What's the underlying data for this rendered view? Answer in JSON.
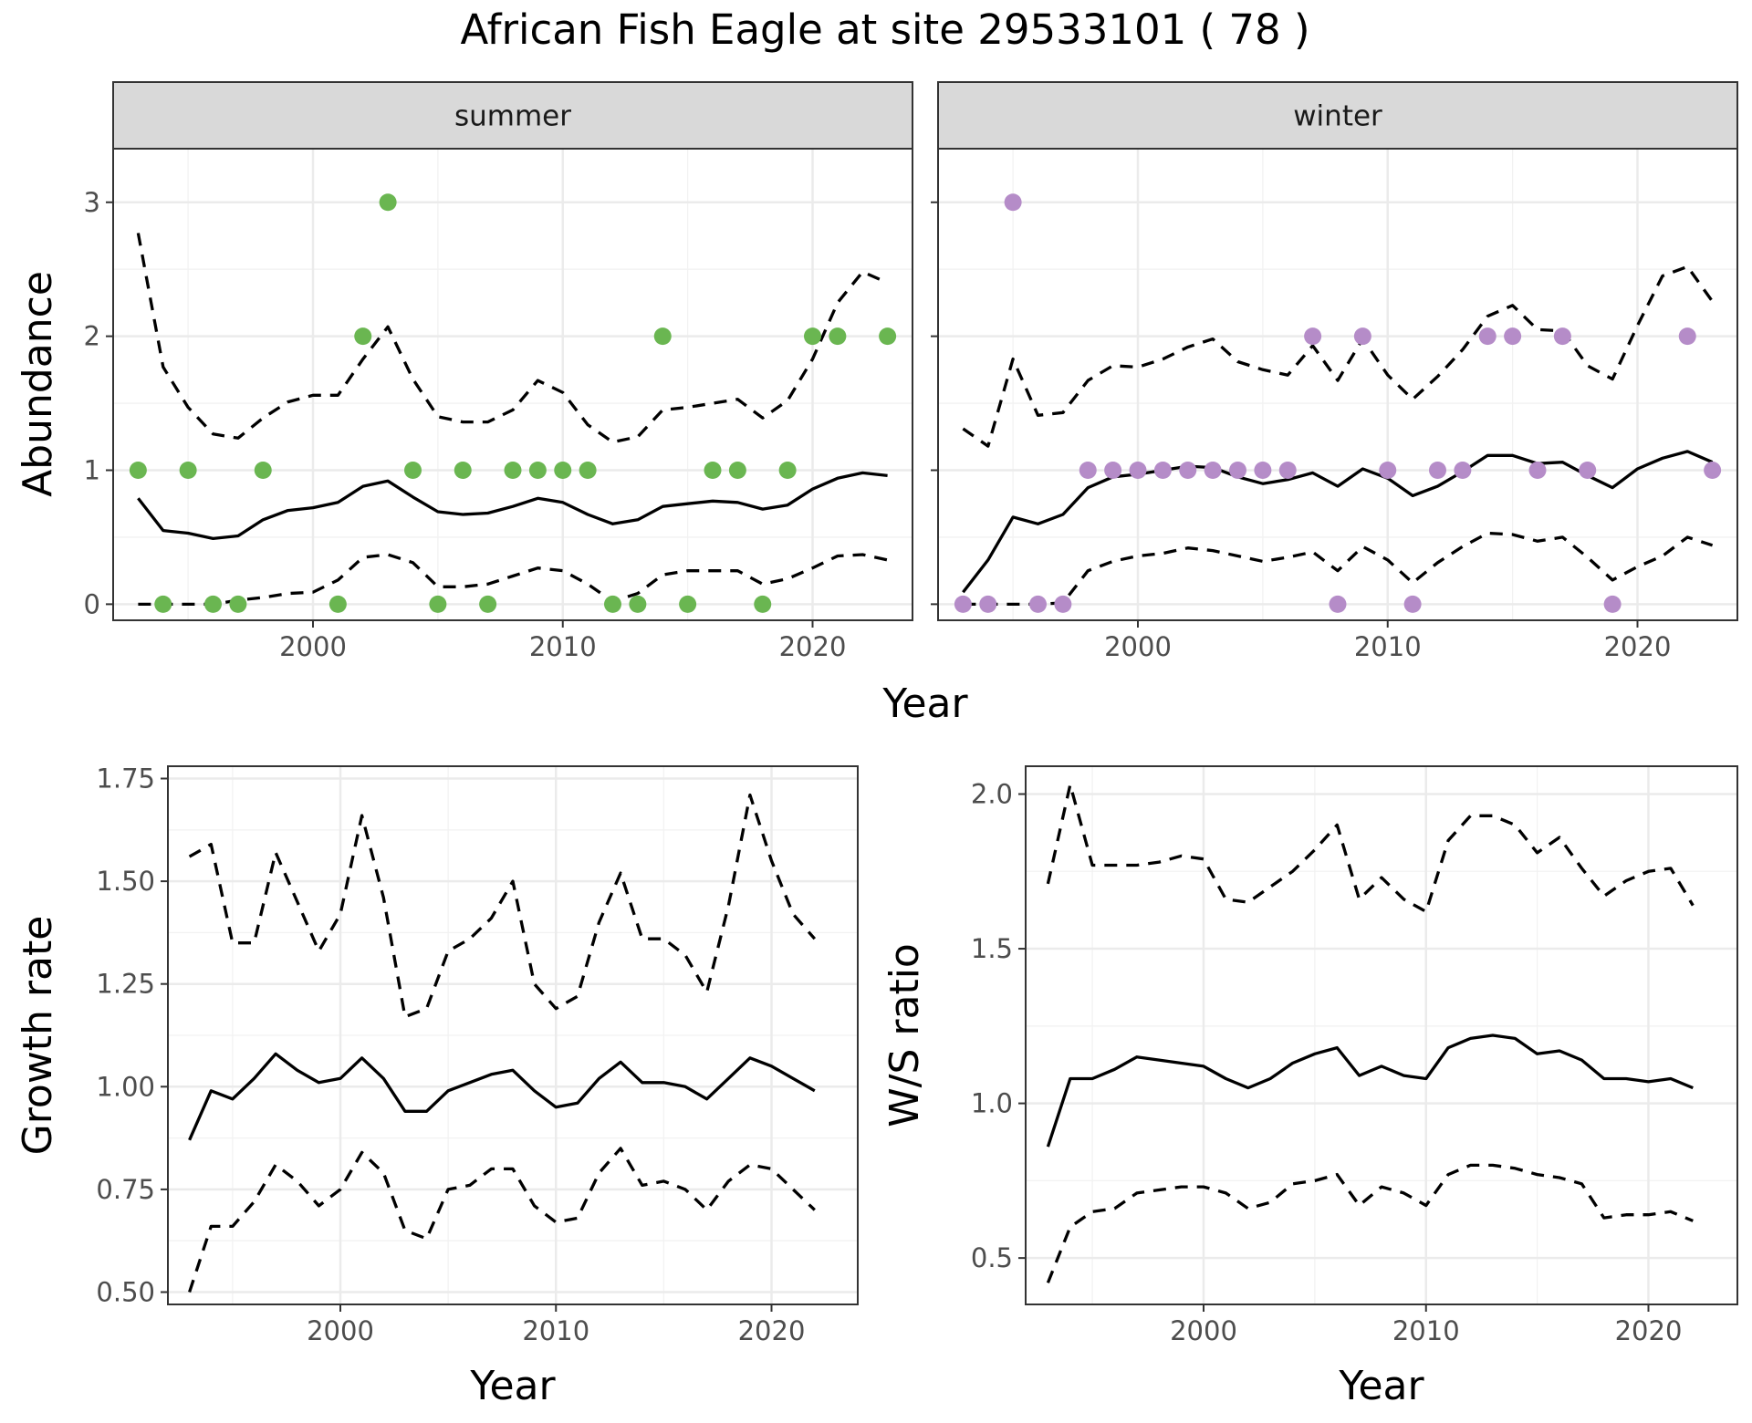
{
  "title": "African Fish Eagle at site 29533101 ( 78 )",
  "colors": {
    "summer_points": "#6ab651",
    "winter_points": "#b58cc8",
    "lines": "#000000"
  },
  "chart_data": [
    {
      "id": "summer",
      "type": "scatter",
      "facet_label": "summer",
      "xlabel": "Year",
      "ylabel": "Abundance",
      "xlim": [
        1992,
        2024
      ],
      "ylim": [
        -0.12,
        3.4
      ],
      "xticks": [
        2000,
        2010,
        2020
      ],
      "yticks": [
        0,
        1,
        2,
        3
      ],
      "grid": true,
      "points": {
        "x": [
          1993,
          1994,
          1995,
          1996,
          1997,
          1998,
          2001,
          2002,
          2003,
          2004,
          2005,
          2006,
          2007,
          2008,
          2009,
          2010,
          2011,
          2012,
          2013,
          2014,
          2015,
          2016,
          2017,
          2018,
          2019,
          2020,
          2021,
          2023
        ],
        "y": [
          1,
          0,
          1,
          0,
          0,
          1,
          0,
          2,
          3,
          1,
          0,
          1,
          0,
          1,
          1,
          1,
          1,
          0,
          0,
          2,
          0,
          1,
          1,
          0,
          1,
          2,
          2,
          2
        ]
      },
      "lines": [
        {
          "style": "solid",
          "x": [
            1993,
            1994,
            1995,
            1996,
            1997,
            1998,
            1999,
            2000,
            2001,
            2002,
            2003,
            2004,
            2005,
            2006,
            2007,
            2008,
            2009,
            2010,
            2011,
            2012,
            2013,
            2014,
            2015,
            2016,
            2017,
            2018,
            2019,
            2020,
            2021,
            2022,
            2023
          ],
          "y": [
            0.79,
            0.55,
            0.53,
            0.49,
            0.51,
            0.63,
            0.7,
            0.72,
            0.76,
            0.88,
            0.92,
            0.8,
            0.69,
            0.67,
            0.68,
            0.73,
            0.79,
            0.76,
            0.67,
            0.6,
            0.63,
            0.73,
            0.75,
            0.77,
            0.76,
            0.71,
            0.74,
            0.86,
            0.94,
            0.98,
            0.96
          ]
        },
        {
          "style": "dashed",
          "x": [
            1993,
            1994,
            1995,
            1996,
            1997,
            1998,
            1999,
            2000,
            2001,
            2002,
            2003,
            2004,
            2005,
            2006,
            2007,
            2008,
            2009,
            2010,
            2011,
            2012,
            2013,
            2014,
            2015,
            2016,
            2017,
            2018,
            2019,
            2020,
            2021,
            2022,
            2023
          ],
          "y": [
            2.77,
            1.77,
            1.47,
            1.27,
            1.24,
            1.39,
            1.51,
            1.56,
            1.56,
            1.83,
            2.07,
            1.68,
            1.4,
            1.36,
            1.36,
            1.45,
            1.67,
            1.58,
            1.34,
            1.21,
            1.25,
            1.45,
            1.47,
            1.5,
            1.53,
            1.39,
            1.52,
            1.83,
            2.25,
            2.48,
            2.4
          ]
        },
        {
          "style": "dashed",
          "x": [
            1993,
            1994,
            1995,
            1996,
            1997,
            1998,
            1999,
            2000,
            2001,
            2002,
            2003,
            2004,
            2005,
            2006,
            2007,
            2008,
            2009,
            2010,
            2011,
            2012,
            2013,
            2014,
            2015,
            2016,
            2017,
            2018,
            2019,
            2020,
            2021,
            2022,
            2023
          ],
          "y": [
            0,
            0,
            0,
            0,
            0.03,
            0.05,
            0.08,
            0.09,
            0.18,
            0.35,
            0.37,
            0.31,
            0.13,
            0.13,
            0.15,
            0.21,
            0.27,
            0.25,
            0.15,
            0.02,
            0.08,
            0.22,
            0.25,
            0.25,
            0.25,
            0.15,
            0.19,
            0.27,
            0.36,
            0.37,
            0.33
          ]
        }
      ]
    },
    {
      "id": "winter",
      "type": "scatter",
      "facet_label": "winter",
      "xlabel": "Year",
      "ylabel": "Abundance",
      "xlim": [
        1992,
        2024
      ],
      "ylim": [
        -0.12,
        3.4
      ],
      "xticks": [
        2000,
        2010,
        2020
      ],
      "yticks": [
        0,
        1,
        2,
        3
      ],
      "grid": true,
      "points": {
        "x": [
          1993,
          1994,
          1995,
          1996,
          1997,
          1998,
          1999,
          2000,
          2001,
          2002,
          2003,
          2004,
          2005,
          2006,
          2007,
          2008,
          2009,
          2010,
          2011,
          2012,
          2013,
          2014,
          2015,
          2016,
          2017,
          2018,
          2019,
          2022,
          2023
        ],
        "y": [
          0,
          0,
          3,
          0,
          0,
          1,
          1,
          1,
          1,
          1,
          1,
          1,
          1,
          1,
          2,
          0,
          2,
          1,
          0,
          1,
          1,
          2,
          2,
          1,
          2,
          1,
          0,
          2,
          1
        ]
      },
      "lines": [
        {
          "style": "solid",
          "x": [
            1993,
            1994,
            1995,
            1996,
            1997,
            1998,
            1999,
            2000,
            2001,
            2002,
            2003,
            2004,
            2005,
            2006,
            2007,
            2008,
            2009,
            2010,
            2011,
            2012,
            2013,
            2014,
            2015,
            2016,
            2017,
            2018,
            2019,
            2020,
            2021,
            2022,
            2023
          ],
          "y": [
            0.09,
            0.33,
            0.65,
            0.6,
            0.67,
            0.87,
            0.95,
            0.97,
            1.0,
            1.03,
            1.02,
            0.95,
            0.9,
            0.93,
            0.98,
            0.88,
            1.01,
            0.94,
            0.81,
            0.88,
            0.99,
            1.11,
            1.11,
            1.05,
            1.06,
            0.96,
            0.87,
            1.01,
            1.09,
            1.14,
            1.06
          ]
        },
        {
          "style": "dashed",
          "x": [
            1993,
            1994,
            1995,
            1996,
            1997,
            1998,
            1999,
            2000,
            2001,
            2002,
            2003,
            2004,
            2005,
            2006,
            2007,
            2008,
            2009,
            2010,
            2011,
            2012,
            2013,
            2014,
            2015,
            2016,
            2017,
            2018,
            2019,
            2020,
            2021,
            2022,
            2023
          ],
          "y": [
            1.31,
            1.18,
            1.83,
            1.41,
            1.43,
            1.67,
            1.78,
            1.77,
            1.83,
            1.92,
            1.98,
            1.81,
            1.75,
            1.71,
            1.93,
            1.67,
            1.98,
            1.71,
            1.53,
            1.7,
            1.9,
            2.15,
            2.23,
            2.05,
            2.04,
            1.78,
            1.68,
            2.08,
            2.45,
            2.52,
            2.26
          ]
        },
        {
          "style": "dashed",
          "x": [
            1993,
            1994,
            1995,
            1996,
            1997,
            1998,
            1999,
            2000,
            2001,
            2002,
            2003,
            2004,
            2005,
            2006,
            2007,
            2008,
            2009,
            2010,
            2011,
            2012,
            2013,
            2014,
            2015,
            2016,
            2017,
            2018,
            2019,
            2020,
            2021,
            2022,
            2023
          ],
          "y": [
            0,
            0,
            0,
            0,
            0.01,
            0.25,
            0.32,
            0.36,
            0.38,
            0.42,
            0.4,
            0.36,
            0.32,
            0.35,
            0.39,
            0.25,
            0.43,
            0.33,
            0.16,
            0.31,
            0.43,
            0.53,
            0.52,
            0.47,
            0.5,
            0.35,
            0.18,
            0.28,
            0.36,
            0.5,
            0.44
          ]
        }
      ]
    },
    {
      "id": "growth",
      "type": "line",
      "xlabel": "Year",
      "ylabel": "Growth rate",
      "xlim": [
        1992,
        2024
      ],
      "ylim": [
        0.47,
        1.78
      ],
      "xticks": [
        2000,
        2010,
        2020
      ],
      "yticks": [
        0.5,
        0.75,
        1.0,
        1.25,
        1.5,
        1.75
      ],
      "ytick_labels": [
        "0.50",
        "0.75",
        "1.00",
        "1.25",
        "1.50",
        "1.75"
      ],
      "grid": true,
      "lines": [
        {
          "style": "solid",
          "x": [
            1993,
            1994,
            1995,
            1996,
            1997,
            1998,
            1999,
            2000,
            2001,
            2002,
            2003,
            2004,
            2005,
            2006,
            2007,
            2008,
            2009,
            2010,
            2011,
            2012,
            2013,
            2014,
            2015,
            2016,
            2017,
            2018,
            2019,
            2020,
            2021,
            2022
          ],
          "y": [
            0.87,
            0.99,
            0.97,
            1.02,
            1.08,
            1.04,
            1.01,
            1.02,
            1.07,
            1.02,
            0.94,
            0.94,
            0.99,
            1.01,
            1.03,
            1.04,
            0.99,
            0.95,
            0.96,
            1.02,
            1.06,
            1.01,
            1.01,
            1.0,
            0.97,
            1.02,
            1.07,
            1.05,
            1.02,
            0.99
          ]
        },
        {
          "style": "dashed",
          "x": [
            1993,
            1994,
            1995,
            1996,
            1997,
            1998,
            1999,
            2000,
            2001,
            2002,
            2003,
            2004,
            2005,
            2006,
            2007,
            2008,
            2009,
            2010,
            2011,
            2012,
            2013,
            2014,
            2015,
            2016,
            2017,
            2018,
            2019,
            2020,
            2021,
            2022
          ],
          "y": [
            1.56,
            1.59,
            1.35,
            1.35,
            1.57,
            1.45,
            1.33,
            1.42,
            1.66,
            1.46,
            1.17,
            1.19,
            1.33,
            1.36,
            1.41,
            1.5,
            1.25,
            1.19,
            1.22,
            1.4,
            1.52,
            1.36,
            1.36,
            1.32,
            1.23,
            1.44,
            1.71,
            1.55,
            1.42,
            1.36
          ]
        },
        {
          "style": "dashed",
          "x": [
            1993,
            1994,
            1995,
            1996,
            1997,
            1998,
            1999,
            2000,
            2001,
            2002,
            2003,
            2004,
            2005,
            2006,
            2007,
            2008,
            2009,
            2010,
            2011,
            2012,
            2013,
            2014,
            2015,
            2016,
            2017,
            2018,
            2019,
            2020,
            2021,
            2022
          ],
          "y": [
            0.5,
            0.66,
            0.66,
            0.72,
            0.81,
            0.77,
            0.71,
            0.75,
            0.84,
            0.79,
            0.65,
            0.63,
            0.75,
            0.76,
            0.8,
            0.8,
            0.71,
            0.67,
            0.68,
            0.79,
            0.85,
            0.76,
            0.77,
            0.75,
            0.7,
            0.77,
            0.81,
            0.8,
            0.75,
            0.7
          ]
        }
      ]
    },
    {
      "id": "ratio",
      "type": "line",
      "xlabel": "Year",
      "ylabel": "W/S ratio",
      "xlim": [
        1992,
        2024
      ],
      "ylim": [
        0.35,
        2.09
      ],
      "xticks": [
        2000,
        2010,
        2020
      ],
      "yticks": [
        0.5,
        1.0,
        1.5,
        2.0
      ],
      "ytick_labels": [
        "0.5",
        "1.0",
        "1.5",
        "2.0"
      ],
      "grid": true,
      "lines": [
        {
          "style": "solid",
          "x": [
            1993,
            1994,
            1995,
            1996,
            1997,
            1998,
            1999,
            2000,
            2001,
            2002,
            2003,
            2004,
            2005,
            2006,
            2007,
            2008,
            2009,
            2010,
            2011,
            2012,
            2013,
            2014,
            2015,
            2016,
            2017,
            2018,
            2019,
            2020,
            2021,
            2022
          ],
          "y": [
            0.86,
            1.08,
            1.08,
            1.11,
            1.15,
            1.14,
            1.13,
            1.12,
            1.08,
            1.05,
            1.08,
            1.13,
            1.16,
            1.18,
            1.09,
            1.12,
            1.09,
            1.08,
            1.18,
            1.21,
            1.22,
            1.21,
            1.16,
            1.17,
            1.14,
            1.08,
            1.08,
            1.07,
            1.08,
            1.05
          ]
        },
        {
          "style": "dashed",
          "x": [
            1993,
            1994,
            1995,
            1996,
            1997,
            1998,
            1999,
            2000,
            2001,
            2002,
            2003,
            2004,
            2005,
            2006,
            2007,
            2008,
            2009,
            2010,
            2011,
            2012,
            2013,
            2014,
            2015,
            2016,
            2017,
            2018,
            2019,
            2020,
            2021,
            2022
          ],
          "y": [
            1.71,
            2.03,
            1.77,
            1.77,
            1.77,
            1.78,
            1.8,
            1.79,
            1.66,
            1.65,
            1.7,
            1.75,
            1.82,
            1.9,
            1.66,
            1.73,
            1.66,
            1.62,
            1.85,
            1.93,
            1.93,
            1.9,
            1.81,
            1.86,
            1.76,
            1.67,
            1.72,
            1.75,
            1.76,
            1.64
          ]
        },
        {
          "style": "dashed",
          "x": [
            1993,
            1994,
            1995,
            1996,
            1997,
            1998,
            1999,
            2000,
            2001,
            2002,
            2003,
            2004,
            2005,
            2006,
            2007,
            2008,
            2009,
            2010,
            2011,
            2012,
            2013,
            2014,
            2015,
            2016,
            2017,
            2018,
            2019,
            2020,
            2021,
            2022
          ],
          "y": [
            0.42,
            0.6,
            0.65,
            0.66,
            0.71,
            0.72,
            0.73,
            0.73,
            0.71,
            0.66,
            0.68,
            0.74,
            0.75,
            0.77,
            0.67,
            0.73,
            0.71,
            0.67,
            0.77,
            0.8,
            0.8,
            0.79,
            0.77,
            0.76,
            0.74,
            0.63,
            0.64,
            0.64,
            0.65,
            0.62
          ]
        }
      ]
    }
  ]
}
